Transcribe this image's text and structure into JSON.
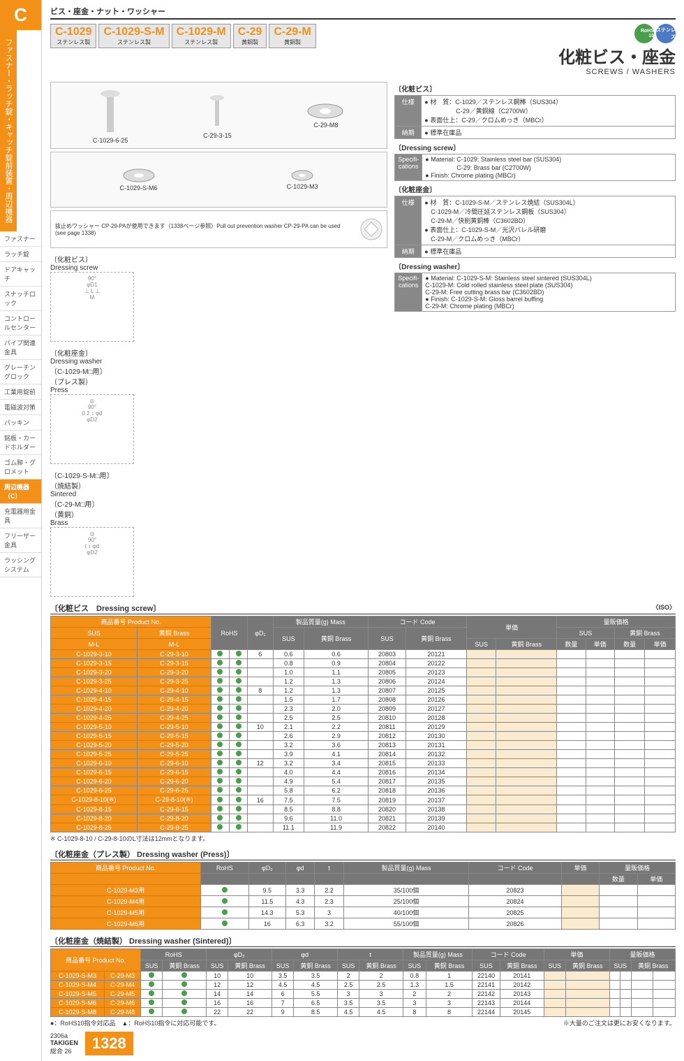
{
  "breadcrumb": "ビス・座金・ナット・ワッシャー",
  "c_letter": "C",
  "vert": "ファスナー・ラッチ錠・キャッチ錠前装置・周辺機器",
  "side_nav": [
    "ファスナー",
    "ラッチ錠",
    "ドアキャッチ",
    "スナッチロック",
    "コントロールセンター",
    "パイプ関連金具",
    "グレーチングロック",
    "工業用錠前",
    "電磁波対策",
    "パッキン",
    "銘板・カードホルダー",
    "ゴム脚・グロメット",
    "周辺機器（C）",
    "充電器用金具",
    "フリーザー金具",
    "ラッシングシステム"
  ],
  "side_active": 12,
  "models": [
    {
      "n": "C-1029",
      "s": "ステンレス製"
    },
    {
      "n": "C-1029-S-M",
      "s": "ステンレス製"
    },
    {
      "n": "C-1029-M",
      "s": "ステンレス製"
    },
    {
      "n": "C-29",
      "s": "黄銅製"
    },
    {
      "n": "C-29-M",
      "s": "黄銅製"
    }
  ],
  "title_jp": "化粧ビス・座金",
  "title_en": "SCREWS / WASHERS",
  "badges": [
    "RoHS 10",
    "ステンレス"
  ],
  "img_labels": [
    "C-1029-6-25",
    "C-29-3-15",
    "C-29-M8",
    "C-1029-S-M6",
    "C-1029-M3"
  ],
  "diag_labels": {
    "screw": "〔化粧ビス〕\nDressing screw",
    "washer_p": "〔化粧座金〕\nDressing washer\n〔C-1029-M□用〕\n（プレス製）\nPress",
    "washer_s": "〔C-1029-S-M□用〕\n（焼結製）\nSintered\n〔C-29-M□用〕\n（黄銅）\nBrass"
  },
  "note": "抜止めワッシャー CP-29-PAが使用できます（1338ページ参照）Pull out prevention washer CP-29-PA can be used (see page 1338)",
  "spec_jp_screw": {
    "label": "〔化粧ビス〕",
    "仕様": "● 材　質：C-1029／ステンレス鋼棒（SUS304）\n　　　　　C-29／黄銅線（C2700W）\n● 表面仕上：C-29／クロムめっき（MBCr）",
    "納期": "● 標準在庫品"
  },
  "spec_en_screw": {
    "label": "〔Dressing screw〕",
    "spec": "● Material: C-1029: Stainless steel bar (SUS304)\n　　　　　C-29: Brass bar (C2700W)\n● Finish: Chrome plating (MBCr)"
  },
  "spec_jp_washer": {
    "label": "〔化粧座金〕",
    "仕様": "● 材　質：C-1029-S-M／ステンレス焼結（SUS304L）\n　C-1029-M／冷間圧延ステンレス鋼板（SUS304）\n　C-29-M／快削黄銅棒（C3602BD）\n● 表面仕上：C-1029-S-M／光沢バレル研磨\n　C-29-M／クロムめっき（MBCr）",
    "納期": "● 標準在庫品"
  },
  "spec_en_washer": {
    "label": "〔Dressing washer〕",
    "spec": "● Material: C-1029-S-M: Stainless steel sintered (SUS304L)\nC-1029-M: Cold rolled stainless steel plate (SUS304)\nC-29-M: Free cutting brass bar (C3602BD)\n● Finish: C-1029-S-M: Gloss barrel buffing\nC-29-M: Chrome plating (MBCr)"
  },
  "table1_title": "〔化粧ビス　Dressing screw〕",
  "iso": "〈ISO〉",
  "t1_head": {
    "pn": "商品番号\nProduct No.",
    "sus": "SUS",
    "brass": "黄銅\nBrass",
    "ml": "M-L",
    "rohs": "RoHS",
    "d1": "φD₁",
    "mass": "製品質量(g)\nMass",
    "code": "コード\nCode",
    "unit": "単価",
    "bulk": "量販価格",
    "qty": "数量"
  },
  "t1_rows": [
    {
      "s": "C-1029-3-10",
      "b": "C-29-3-10",
      "d": "6",
      "ms": "0.6",
      "mb": "0.6",
      "cs": "20803",
      "cb": "20121"
    },
    {
      "s": "C-1029-3-15",
      "b": "C-29-3-15",
      "d": "",
      "ms": "0.8",
      "mb": "0.9",
      "cs": "20804",
      "cb": "20122"
    },
    {
      "s": "C-1029-3-20",
      "b": "C-29-3-20",
      "d": "",
      "ms": "1.0",
      "mb": "1.1",
      "cs": "20805",
      "cb": "20123"
    },
    {
      "s": "C-1029-3-25",
      "b": "C-29-3-25",
      "d": "",
      "ms": "1.2",
      "mb": "1.3",
      "cs": "20806",
      "cb": "20124"
    },
    {
      "s": "C-1029-4-10",
      "b": "C-29-4-10",
      "d": "8",
      "ms": "1.2",
      "mb": "1.3",
      "cs": "20807",
      "cb": "20125"
    },
    {
      "s": "C-1029-4-15",
      "b": "C-29-4-15",
      "d": "",
      "ms": "1.5",
      "mb": "1.7",
      "cs": "20808",
      "cb": "20126"
    },
    {
      "s": "C-1029-4-20",
      "b": "C-29-4-20",
      "d": "",
      "ms": "2.3",
      "mb": "2.0",
      "cs": "20809",
      "cb": "20127"
    },
    {
      "s": "C-1029-4-25",
      "b": "C-29-4-25",
      "d": "",
      "ms": "2.5",
      "mb": "2.5",
      "cs": "20810",
      "cb": "20128"
    },
    {
      "s": "C-1029-5-10",
      "b": "C-29-5-10",
      "d": "10",
      "ms": "2.1",
      "mb": "2.2",
      "cs": "20811",
      "cb": "20129"
    },
    {
      "s": "C-1029-5-15",
      "b": "C-29-5-15",
      "d": "",
      "ms": "2.6",
      "mb": "2.9",
      "cs": "20812",
      "cb": "20130"
    },
    {
      "s": "C-1029-5-20",
      "b": "C-29-5-20",
      "d": "",
      "ms": "3.2",
      "mb": "3.6",
      "cs": "20813",
      "cb": "20131"
    },
    {
      "s": "C-1029-5-25",
      "b": "C-29-5-25",
      "d": "",
      "ms": "3.9",
      "mb": "4.1",
      "cs": "20814",
      "cb": "20132"
    },
    {
      "s": "C-1029-6-10",
      "b": "C-29-6-10",
      "d": "12",
      "ms": "3.2",
      "mb": "3.4",
      "cs": "20815",
      "cb": "20133"
    },
    {
      "s": "C-1029-6-15",
      "b": "C-29-6-15",
      "d": "",
      "ms": "4.0",
      "mb": "4.4",
      "cs": "20816",
      "cb": "20134"
    },
    {
      "s": "C-1029-6-20",
      "b": "C-29-6-20",
      "d": "",
      "ms": "4.9",
      "mb": "5.4",
      "cs": "20817",
      "cb": "20135"
    },
    {
      "s": "C-1029-6-25",
      "b": "C-29-6-25",
      "d": "",
      "ms": "5.8",
      "mb": "6.2",
      "cs": "20818",
      "cb": "20136"
    },
    {
      "s": "C-1029-8-10(※)",
      "b": "C-29-8-10(※)",
      "d": "16",
      "ms": "7.5",
      "mb": "7.5",
      "cs": "20819",
      "cb": "20137"
    },
    {
      "s": "C-1029-8-15",
      "b": "C-29-8-15",
      "d": "",
      "ms": "8.5",
      "mb": "8.8",
      "cs": "20820",
      "cb": "20138"
    },
    {
      "s": "C-1029-8-20",
      "b": "C-29-8-20",
      "d": "",
      "ms": "9.6",
      "mb": "11.0",
      "cs": "20821",
      "cb": "20139"
    },
    {
      "s": "C-1029-8-25",
      "b": "C-29-8-25",
      "d": "",
      "ms": "11.1",
      "mb": "11.9",
      "cs": "20822",
      "cb": "20140"
    }
  ],
  "t1_note": "※ C-1029-8-10 / C-29-8-10のL寸法は12mmとなります。",
  "table2_title": "〔化粧座金（プレス製） Dressing washer (Press)〕",
  "t2_rows": [
    {
      "p": "C-1029-M3用",
      "d2": "9.5",
      "d": "3.3",
      "t": "2.2",
      "m": "35/100個",
      "c": "20823"
    },
    {
      "p": "C-1029-M4用",
      "d2": "11.5",
      "d": "4.3",
      "t": "2.3",
      "m": "25/100個",
      "c": "20824"
    },
    {
      "p": "C-1029-M5用",
      "d2": "14.3",
      "d": "5.3",
      "t": "3",
      "m": "40/100個",
      "c": "20825"
    },
    {
      "p": "C-1029-M6用",
      "d2": "16",
      "d": "6.3",
      "t": "3.2",
      "m": "55/100個",
      "c": "20826"
    }
  ],
  "table3_title": "〔化粧座金（焼結製） Dressing washer (Sintered)〕",
  "t3_rows": [
    {
      "s": "C-1029-S-M3",
      "b": "C-29-M3",
      "d2s": "10",
      "d2b": "10",
      "ds": "3.5",
      "db": "3.5",
      "ts": "2",
      "tb": "2",
      "ms": "0.8",
      "mb": "1",
      "cs": "22140",
      "cb": "20141"
    },
    {
      "s": "C-1029-S-M4",
      "b": "C-29-M4",
      "d2s": "12",
      "d2b": "12",
      "ds": "4.5",
      "db": "4.5",
      "ts": "2.5",
      "tb": "2.5",
      "ms": "1.3",
      "mb": "1.5",
      "cs": "22141",
      "cb": "20142"
    },
    {
      "s": "C-1029-S-M5",
      "b": "C-29-M5",
      "d2s": "14",
      "d2b": "14",
      "ds": "6",
      "db": "5.5",
      "ts": "3",
      "tb": "3",
      "ms": "2",
      "mb": "2",
      "cs": "22142",
      "cb": "20143"
    },
    {
      "s": "C-1029-S-M6",
      "b": "C-29-M6",
      "d2s": "16",
      "d2b": "16",
      "ds": "7",
      "db": "6.5",
      "ts": "3.5",
      "tb": "3.5",
      "ms": "3",
      "mb": "3",
      "cs": "22143",
      "cb": "20144"
    },
    {
      "s": "C-1029-S-M8",
      "b": "C-29-M8",
      "d2s": "22",
      "d2b": "22",
      "ds": "9",
      "db": "8.5",
      "ts": "4.5",
      "tb": "4.5",
      "ms": "8",
      "mb": "8",
      "cs": "22144",
      "cb": "20145"
    }
  ],
  "legend": "●：RoHS10指令対応品　▲：RoHS10指令に対応可能です。",
  "bulk_note": "※大量のご注文は更にお安くなります。",
  "footer": {
    "code": "2306a",
    "brand": "TAKIGEN",
    "cat": "総合 26",
    "page": "1328"
  }
}
